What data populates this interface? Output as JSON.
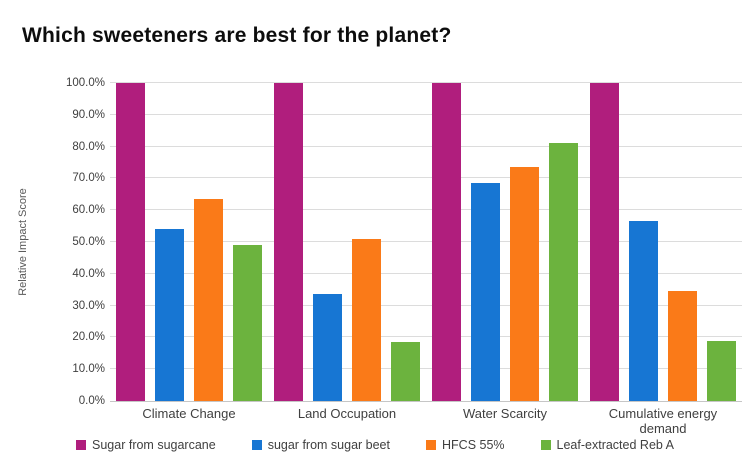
{
  "chart_data": {
    "type": "bar",
    "title": "Which sweeteners are best for the planet?",
    "xlabel": "",
    "ylabel": "Relative Impact Score",
    "ylim": [
      0,
      100
    ],
    "grid": true,
    "legend_position": "bottom",
    "yticks": [
      {
        "value": 0,
        "label": "0.0%"
      },
      {
        "value": 10,
        "label": "10.0%"
      },
      {
        "value": 20,
        "label": "20.0%"
      },
      {
        "value": 30,
        "label": "30.0%"
      },
      {
        "value": 40,
        "label": "40.0%"
      },
      {
        "value": 50,
        "label": "50.0%"
      },
      {
        "value": 60,
        "label": "60.0%"
      },
      {
        "value": 70,
        "label": "70.0%"
      },
      {
        "value": 80,
        "label": "80.0%"
      },
      {
        "value": 90,
        "label": "90.0%"
      },
      {
        "value": 100,
        "label": "100.0%"
      }
    ],
    "categories": [
      "Climate Change",
      "Land Occupation",
      "Water Scarcity",
      "Cumulative energy demand"
    ],
    "series": [
      {
        "name": "Sugar from sugarcane",
        "color": "#B01E7D",
        "values": [
          100,
          100,
          100,
          100
        ]
      },
      {
        "name": "sugar from sugar beet",
        "color": "#1776D3",
        "values": [
          54,
          33.5,
          68.5,
          56.5
        ]
      },
      {
        "name": "HFCS 55%",
        "color": "#FA7A18",
        "values": [
          63.5,
          51,
          73.5,
          34.5
        ]
      },
      {
        "name": "Leaf-extracted Reb A",
        "color": "#6CB33E",
        "values": [
          49,
          18.5,
          81,
          19
        ]
      }
    ]
  },
  "colors": {
    "background": "#ffffff",
    "title_text": "#0d0d0d",
    "axis_text": "#404040",
    "gridline": "#dcdcdc",
    "axis_line": "#c6c6c6"
  }
}
